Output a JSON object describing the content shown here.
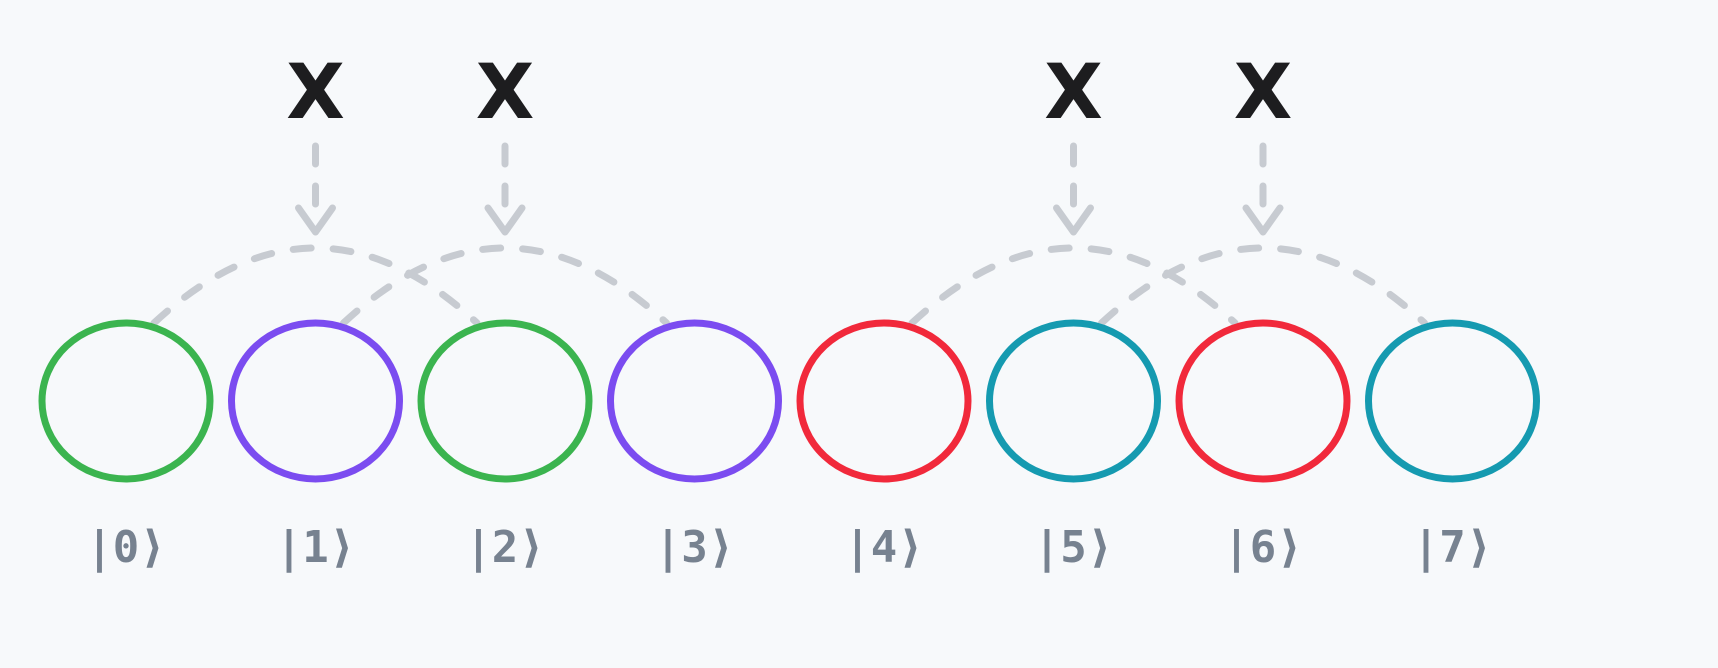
{
  "gate_symbol": "X",
  "colors": {
    "green": "#3bb44f",
    "purple": "#7b4cf0",
    "red": "#f1293b",
    "teal": "#159ab0",
    "dash": "#c7cbd1",
    "label": "#778290",
    "gate": "#1d1d1f"
  },
  "states": [
    {
      "label": "|0⟩",
      "color": "#3bb44f"
    },
    {
      "label": "|1⟩",
      "color": "#7b4cf0"
    },
    {
      "label": "|2⟩",
      "color": "#3bb44f"
    },
    {
      "label": "|3⟩",
      "color": "#7b4cf0"
    },
    {
      "label": "|4⟩",
      "color": "#f1293b"
    },
    {
      "label": "|5⟩",
      "color": "#159ab0"
    },
    {
      "label": "|6⟩",
      "color": "#f1293b"
    },
    {
      "label": "|7⟩",
      "color": "#159ab0"
    }
  ],
  "gates": [
    {
      "symbol": "X",
      "pair": [
        0,
        2
      ]
    },
    {
      "symbol": "X",
      "pair": [
        1,
        3
      ]
    },
    {
      "symbol": "X",
      "pair": [
        4,
        6
      ]
    },
    {
      "symbol": "X",
      "pair": [
        5,
        7
      ]
    }
  ]
}
